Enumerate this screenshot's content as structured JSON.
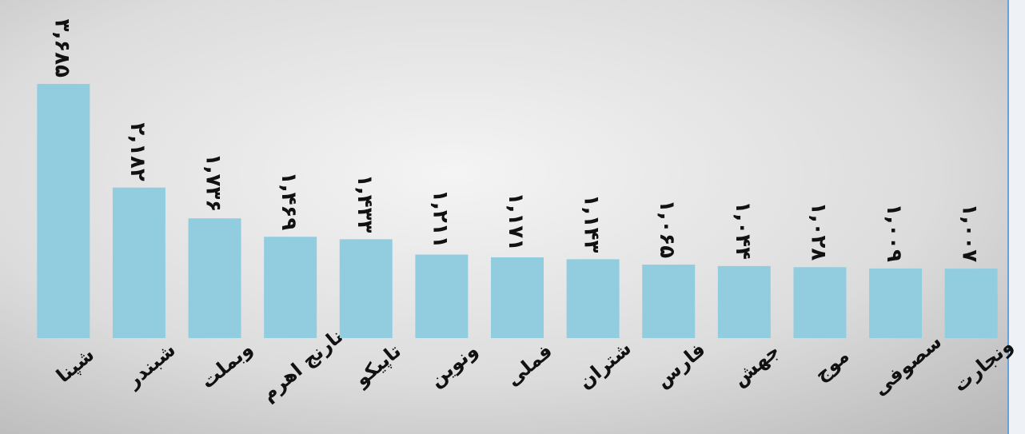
{
  "chart_data": {
    "type": "bar",
    "categories": [
      "شپنا",
      "شبندر",
      "وبملت",
      "نارنج اهرم",
      "تاپیکو",
      "ونوین",
      "فملی",
      "شتران",
      "فارس",
      "جهش",
      "موج",
      "سصوفی",
      "ونجارت"
    ],
    "values": [
      3685,
      2182,
      1736,
      1469,
      1433,
      1211,
      1171,
      1143,
      1065,
      1044,
      1028,
      1009,
      1007
    ],
    "value_labels": [
      "۳,۶۸۵",
      "۲,۱۸۲",
      "۱,۷۳۶",
      "۱,۴۶۹",
      "۱,۴۳۳",
      "۱,۲۱۱",
      "۱,۱۷۱",
      "۱,۱۴۳",
      "۱,۰۶۵",
      "۱,۰۴۴",
      "۱,۰۲۸",
      "۱,۰۰۹",
      "۱,۰۰۷"
    ],
    "color": "#92cddf"
  }
}
